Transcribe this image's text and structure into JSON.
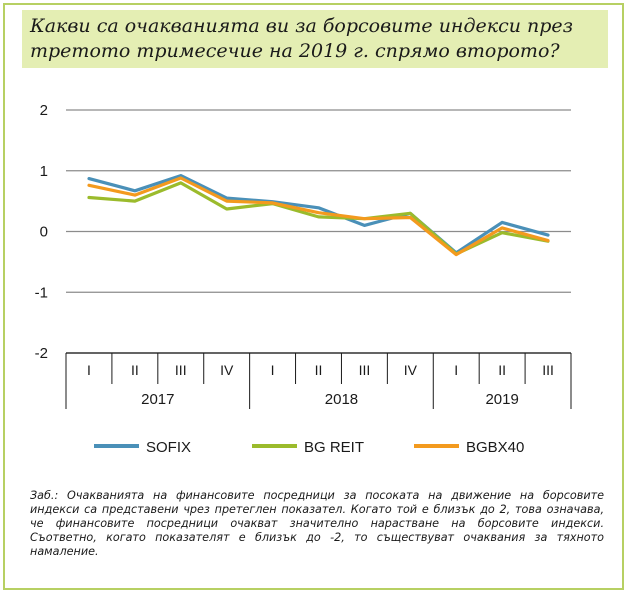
{
  "title": "Какви са очакванията ви за борсовите индекси през третото тримесечие на 2019 г. спрямо второто?",
  "note": "Заб.: Очакванията на финансовите посредници за посоката на движение на борсовите индекси са представени чрез претеглен показател. Когато той е близък до 2, това означава, че финансовите посредници очакват значително нарастване на борсовите индекси. Съответно, когато показателят е близък до -2, то съществуват очаквания за тяхното намаление.",
  "chart_data": {
    "type": "line",
    "categories": [
      "I",
      "II",
      "III",
      "IV",
      "I",
      "II",
      "III",
      "IV",
      "I",
      "II",
      "III"
    ],
    "year_groups": [
      {
        "label": "2017",
        "count": 4
      },
      {
        "label": "2018",
        "count": 4
      },
      {
        "label": "2019",
        "count": 3
      }
    ],
    "ylim": [
      -2,
      2
    ],
    "yticks": [
      "2",
      "1",
      "0",
      "-1",
      "-2"
    ],
    "ytick_values": [
      2,
      1,
      0,
      -1,
      -2
    ],
    "grid": true,
    "legend_position": "bottom",
    "series": [
      {
        "name": "SOFIX",
        "color": "#4a90b8",
        "values": [
          0.87,
          0.67,
          0.92,
          0.55,
          0.49,
          0.39,
          0.1,
          0.3,
          -0.35,
          0.15,
          -0.06
        ]
      },
      {
        "name": "BG REIT",
        "color": "#9bbb2c",
        "values": [
          0.56,
          0.5,
          0.8,
          0.37,
          0.46,
          0.24,
          0.21,
          0.3,
          -0.37,
          -0.02,
          -0.16
        ]
      },
      {
        "name": "BGBX40",
        "color": "#f39a1e",
        "values": [
          0.76,
          0.6,
          0.88,
          0.5,
          0.47,
          0.31,
          0.21,
          0.23,
          -0.38,
          0.06,
          -0.15
        ]
      }
    ]
  }
}
